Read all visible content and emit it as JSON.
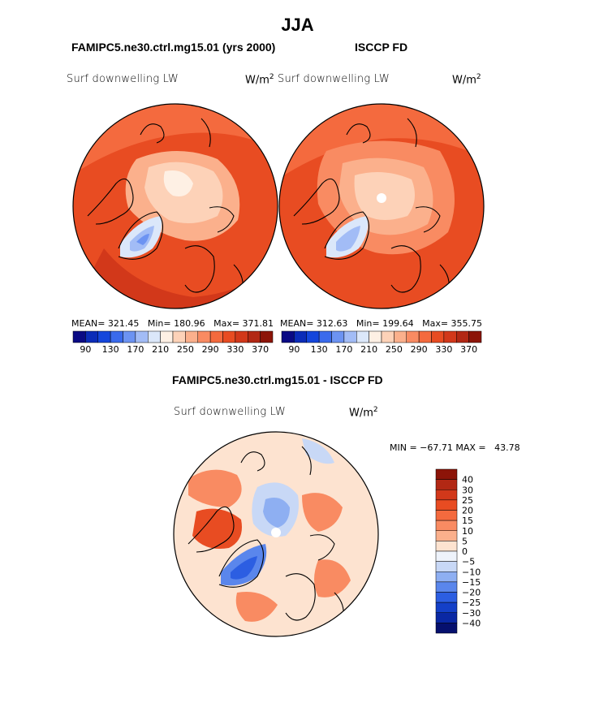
{
  "page": {
    "title": "JJA",
    "diff_title": "FAMIPC5.ne30.ctrl.mg15.01 - ISCCP FD"
  },
  "panels": [
    {
      "name": "model",
      "title": "FAMIPC5.ne30.ctrl.mg15.01 (yrs 2000)",
      "variable": "Surf downwelling LW",
      "units_base": "W/m",
      "units_exp": "2",
      "stats": "MEAN= 321.45   Min= 180.96   Max= 371.81"
    },
    {
      "name": "obs",
      "title": "ISCCP FD",
      "variable": "Surf downwelling LW",
      "units_base": "W/m",
      "units_exp": "2",
      "stats": "MEAN= 312.63   Min= 199.64   Max= 355.75"
    }
  ],
  "diff_panel": {
    "variable": "Surf downwelling LW",
    "units_base": "W/m",
    "units_exp": "2",
    "stats": "MIN = −67.71 MAX =   43.78"
  },
  "chart_data": [
    {
      "type": "heatmap",
      "projection": "north-polar-stereographic",
      "title": "FAMIPC5.ne30.ctrl.mg15.01 (yrs 2000)",
      "variable": "Surf downwelling LW",
      "units": "W/m2",
      "mean": 321.45,
      "min": 180.96,
      "max": 371.81
    },
    {
      "type": "heatmap",
      "projection": "north-polar-stereographic",
      "title": "ISCCP FD",
      "variable": "Surf downwelling LW",
      "units": "W/m2",
      "mean": 312.63,
      "min": 199.64,
      "max": 355.75
    },
    {
      "type": "heatmap",
      "projection": "north-polar-stereographic",
      "title": "FAMIPC5.ne30.ctrl.mg15.01 - ISCCP FD",
      "variable": "Surf downwelling LW",
      "units": "W/m2",
      "min": -67.71,
      "max": 43.78
    }
  ],
  "colorbars": {
    "main": {
      "orientation": "horizontal",
      "labels": [
        "90",
        "130",
        "170",
        "210",
        "250",
        "290",
        "330",
        "370"
      ],
      "colors": [
        "#0a0a84",
        "#0b2cb8",
        "#1446dc",
        "#3a6aec",
        "#6c93f2",
        "#a2bcf6",
        "#dbe7fa",
        "#fef0e4",
        "#fdd2b8",
        "#fbb08c",
        "#f98b62",
        "#f46a3e",
        "#e84c22",
        "#d2381a",
        "#b22814",
        "#8c1408"
      ]
    },
    "diff": {
      "orientation": "vertical",
      "labels": [
        "40",
        "30",
        "25",
        "20",
        "15",
        "10",
        "5",
        "0",
        "−5",
        "−10",
        "−15",
        "−20",
        "−25",
        "−30",
        "−40"
      ],
      "colors": [
        "#8c1408",
        "#b22814",
        "#d2381a",
        "#e84c22",
        "#f46a3e",
        "#f98b62",
        "#fbb08c",
        "#fde3d0",
        "#eef3fb",
        "#c8d8f6",
        "#8eaff2",
        "#5a86ec",
        "#2c5ee2",
        "#1440c8",
        "#0a28a4",
        "#06106e"
      ]
    }
  },
  "colors": {
    "ocean_fill": "#e84c22",
    "warm_fill": "#f46a3e",
    "arctic_fill": "#fdd2b8",
    "arctic_core": "#fbe4d2",
    "greenland_cold": "#a2bcf6",
    "greenland_core": "#6c93f2",
    "diff_bg": "#fde3d0",
    "diff_warm": "#f98b62",
    "diff_hot": "#e84c22",
    "diff_cold": "#5a86ec",
    "diff_coldcore": "#2c5ee2"
  }
}
